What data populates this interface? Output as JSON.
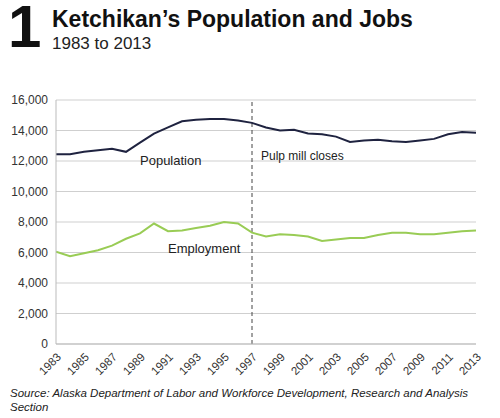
{
  "chart_data": {
    "type": "line",
    "figure_label": "1",
    "title": "Ketchikan’s Population and Jobs",
    "subtitle": "1983 to 2013",
    "source": "Source: Alaska Department of Labor and Workforce Development, Research and Analysis Section",
    "x": [
      1983,
      1984,
      1985,
      1986,
      1987,
      1988,
      1989,
      1990,
      1991,
      1992,
      1993,
      1994,
      1995,
      1996,
      1997,
      1998,
      1999,
      2000,
      2001,
      2002,
      2003,
      2004,
      2005,
      2006,
      2007,
      2008,
      2009,
      2010,
      2011,
      2012,
      2013
    ],
    "series": [
      {
        "name": "Population",
        "color": "#1f2340",
        "values": [
          12450,
          12450,
          12600,
          12700,
          12800,
          12600,
          13200,
          13800,
          14200,
          14600,
          14700,
          14750,
          14750,
          14650,
          14500,
          14200,
          14000,
          14050,
          13800,
          13750,
          13600,
          13250,
          13350,
          13400,
          13300,
          13250,
          13350,
          13450,
          13750,
          13900,
          13850
        ]
      },
      {
        "name": "Employment",
        "color": "#99cc55",
        "values": [
          6050,
          5750,
          5950,
          6150,
          6450,
          6900,
          7250,
          7900,
          7400,
          7450,
          7600,
          7750,
          8000,
          7900,
          7300,
          7050,
          7200,
          7150,
          7050,
          6750,
          6850,
          6950,
          6950,
          7150,
          7300,
          7300,
          7200,
          7200,
          7300,
          7400,
          7450
        ]
      }
    ],
    "xlim": [
      1983,
      2013
    ],
    "xticks": [
      1983,
      1985,
      1987,
      1989,
      1991,
      1993,
      1995,
      1997,
      1999,
      2001,
      2003,
      2005,
      2007,
      2009,
      2011,
      2013
    ],
    "ylim": [
      0,
      16000
    ],
    "yticks": [
      0,
      {
        "value": 2000,
        "label": "2,000"
      },
      {
        "value": 4000,
        "label": "4,000"
      },
      {
        "value": 6000,
        "label": "6,000"
      },
      {
        "value": 8000,
        "label": "8,000"
      },
      {
        "value": 10000,
        "label": "10,000"
      },
      {
        "value": 12000,
        "label": "12,000"
      },
      {
        "value": 14000,
        "label": "14,000"
      },
      {
        "value": 16000,
        "label": "16,000"
      }
    ],
    "grid": true,
    "annotations": [
      {
        "x": 1997,
        "label": "Pulp mill closes"
      }
    ]
  }
}
